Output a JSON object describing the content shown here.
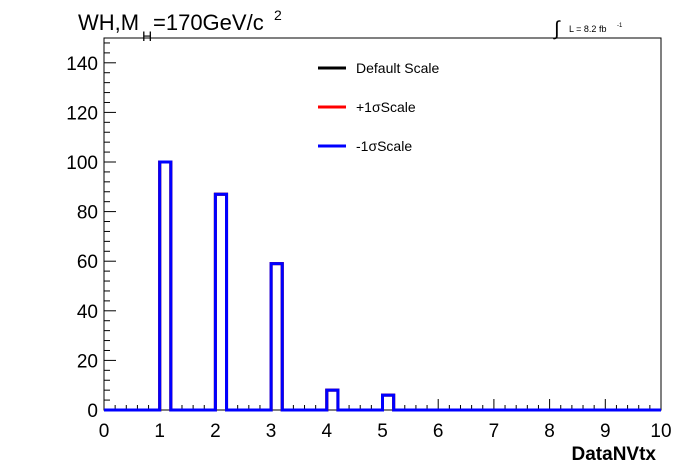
{
  "header": {
    "title_main": "WH,M",
    "title_sub": "H",
    "title_rest": "=170GeV/c",
    "title_sup": "2",
    "lumi_label": "L = 8.2 fb",
    "lumi_sup": "-1"
  },
  "chart_data": {
    "type": "histogram",
    "xlabel": "DataNVtx",
    "ylabel": "",
    "xlim": [
      0,
      10
    ],
    "ylim": [
      0,
      150
    ],
    "x_ticks": [
      0,
      1,
      2,
      3,
      4,
      5,
      6,
      7,
      8,
      9,
      10
    ],
    "y_ticks": [
      0,
      20,
      40,
      60,
      80,
      100,
      120,
      140
    ],
    "bin_edges": [
      0,
      0.2,
      0.4,
      0.6,
      0.8,
      1.0,
      1.2,
      1.4,
      1.6,
      1.8,
      2.0,
      2.2,
      2.4,
      2.6,
      2.8,
      3.0,
      3.2,
      3.4,
      3.6,
      3.8,
      4.0,
      4.2,
      4.4,
      4.6,
      4.8,
      5.0,
      5.2,
      5.4,
      5.6,
      5.8,
      6.0,
      6.2,
      6.4,
      6.6,
      6.8,
      7.0,
      7.2,
      7.4,
      7.6,
      7.8,
      8.0,
      8.2,
      8.4,
      8.6,
      8.8,
      9.0,
      9.2,
      9.4,
      9.6,
      9.8,
      10.0
    ],
    "series": [
      {
        "name": "Default Scale",
        "color": "#000000",
        "values": [
          0,
          0,
          0,
          0,
          0,
          100,
          0,
          0,
          0,
          0,
          87,
          0,
          0,
          0,
          0,
          59,
          0,
          0,
          0,
          0,
          8,
          0,
          0,
          0,
          0,
          6,
          0,
          0,
          0,
          0,
          0,
          0,
          0,
          0,
          0,
          0,
          0,
          0,
          0,
          0,
          0,
          0,
          0,
          0,
          0,
          0,
          0,
          0,
          0,
          0
        ]
      },
      {
        "name": "+1σScale",
        "color": "#ff0000",
        "values": [
          0,
          0,
          0,
          0,
          0,
          100,
          0,
          0,
          0,
          0,
          87,
          0,
          0,
          0,
          0,
          59,
          0,
          0,
          0,
          0,
          8,
          0,
          0,
          0,
          0,
          6,
          0,
          0,
          0,
          0,
          0,
          0,
          0,
          0,
          0,
          0,
          0,
          0,
          0,
          0,
          0,
          0,
          0,
          0,
          0,
          0,
          0,
          0,
          0,
          0
        ]
      },
      {
        "name": "-1σScale",
        "color": "#0000ff",
        "values": [
          0,
          0,
          0,
          0,
          0,
          100,
          0,
          0,
          0,
          0,
          87,
          0,
          0,
          0,
          0,
          59,
          0,
          0,
          0,
          0,
          8,
          0,
          0,
          0,
          0,
          6,
          0,
          0,
          0,
          0,
          0,
          0,
          0,
          0,
          0,
          0,
          0,
          0,
          0,
          0,
          0,
          0,
          0,
          0,
          0,
          0,
          0,
          0,
          0,
          0
        ]
      }
    ],
    "legend": {
      "position": "top-center",
      "entries": [
        "Default Scale",
        "+1σScale",
        "-1σScale"
      ]
    },
    "grid": false
  }
}
